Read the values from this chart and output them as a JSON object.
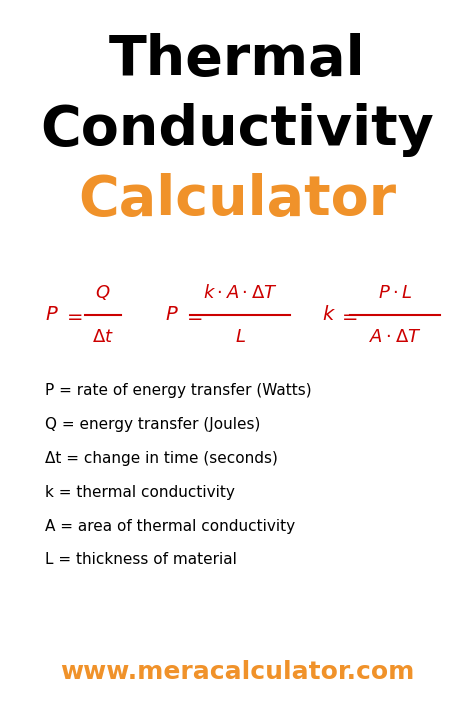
{
  "title_line1": "Thermal",
  "title_line2": "Conductivity",
  "title_line3": "Calculator",
  "title_color_12": "#000000",
  "title_color_3": "#f0922a",
  "background_color": "#ffffff",
  "formula_color": "#cc0000",
  "definitions_color": "#000000",
  "website": "www.meracalculator.com",
  "website_color": "#f0922a",
  "definitions": [
    "P = rate of energy transfer (Watts)",
    "Q = energy transfer (Joules)",
    "Δt = change in time (seconds)",
    "k = thermal conductivity",
    "A = area of thermal conductivity",
    "L = thickness of material"
  ],
  "figsize": [
    4.74,
    7.11
  ],
  "dpi": 100
}
